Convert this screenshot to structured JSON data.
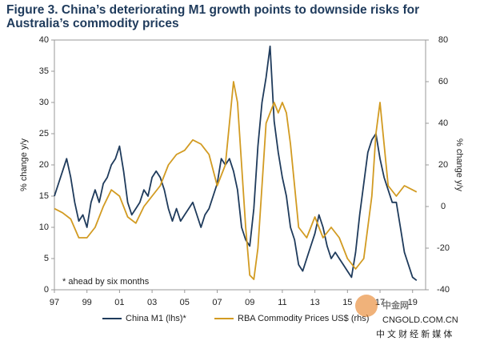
{
  "chart_data": {
    "type": "line",
    "title": "Figure 3. China’s deteriorating M1 growth points to downside risks for Australia’s commodity prices",
    "ylabel": "% change y/y",
    "y2label": "% change y/y",
    "annotation": "* ahead by six months",
    "watermark": "中金网",
    "watermark_url": "CNGOLD.COM.CN",
    "watermark_tagline": "中 文 财 经 新 媒 体",
    "xlim": [
      1997,
      2019.8
    ],
    "xticks": [
      {
        "value": 1997,
        "label": "97"
      },
      {
        "value": 1999,
        "label": "99"
      },
      {
        "value": 2001,
        "label": "01"
      },
      {
        "value": 2003,
        "label": "03"
      },
      {
        "value": 2005,
        "label": "05"
      },
      {
        "value": 2007,
        "label": "07"
      },
      {
        "value": 2009,
        "label": "09"
      },
      {
        "value": 2011,
        "label": "11"
      },
      {
        "value": 2013,
        "label": "13"
      },
      {
        "value": 2015,
        "label": "15"
      },
      {
        "value": 2017,
        "label": "17"
      },
      {
        "value": 2019,
        "label": "19"
      }
    ],
    "ylim": [
      0,
      40
    ],
    "yticks": [
      0,
      5,
      10,
      15,
      20,
      25,
      30,
      35,
      40
    ],
    "y2lim": [
      -40,
      80
    ],
    "y2ticks": [
      -40,
      -20,
      0,
      20,
      40,
      60,
      80
    ],
    "legend": "bottom",
    "series": [
      {
        "name": "China M1 (lhs)*",
        "color": "#1f3b5c",
        "x": [
          1997,
          1997.25,
          1997.5,
          1997.75,
          1998,
          1998.25,
          1998.5,
          1998.75,
          1999,
          1999.25,
          1999.5,
          1999.75,
          2000,
          2000.25,
          2000.5,
          2000.75,
          2001,
          2001.25,
          2001.5,
          2001.75,
          2002,
          2002.25,
          2002.5,
          2002.75,
          2003,
          2003.25,
          2003.5,
          2003.75,
          2004,
          2004.25,
          2004.5,
          2004.75,
          2005,
          2005.25,
          2005.5,
          2005.75,
          2006,
          2006.25,
          2006.5,
          2006.75,
          2007,
          2007.25,
          2007.5,
          2007.75,
          2008,
          2008.25,
          2008.5,
          2008.75,
          2009,
          2009.25,
          2009.5,
          2009.75,
          2010,
          2010.25,
          2010.5,
          2010.75,
          2011,
          2011.25,
          2011.5,
          2011.75,
          2012,
          2012.25,
          2012.5,
          2012.75,
          2013,
          2013.25,
          2013.5,
          2013.75,
          2014,
          2014.25,
          2014.5,
          2014.75,
          2015,
          2015.25,
          2015.5,
          2015.75,
          2016,
          2016.25,
          2016.5,
          2016.75,
          2017,
          2017.25,
          2017.5,
          2017.75,
          2018,
          2018.25,
          2018.5,
          2018.75,
          2019,
          2019.25
        ],
        "values": [
          15,
          17,
          19,
          21,
          18,
          14,
          11,
          12,
          10,
          14,
          16,
          14,
          17,
          18,
          20,
          21,
          23,
          19,
          14,
          12,
          13,
          14,
          16,
          15,
          18,
          19,
          18,
          16,
          13,
          11,
          13,
          11,
          12,
          13,
          14,
          12,
          10,
          12,
          13,
          15,
          17,
          21,
          20,
          21,
          19,
          16,
          10,
          8,
          7,
          13,
          23,
          30,
          34,
          39,
          27,
          22,
          18,
          15,
          10,
          8,
          4,
          3,
          5,
          7,
          9,
          12,
          10,
          7,
          5,
          6,
          5,
          4,
          3,
          2,
          6,
          12,
          17,
          22,
          24,
          25,
          21,
          18,
          16,
          14,
          14,
          10,
          6,
          4,
          2,
          1.5
        ]
      },
      {
        "name": "RBA Commodity Prices US$ (rhs)",
        "color": "#d29b22",
        "axis": "y2",
        "x": [
          1997,
          1997.5,
          1998,
          1998.5,
          1999,
          1999.5,
          2000,
          2000.5,
          2001,
          2001.5,
          2002,
          2002.5,
          2003,
          2003.5,
          2004,
          2004.5,
          2005,
          2005.5,
          2006,
          2006.5,
          2007,
          2007.5,
          2007.75,
          2008,
          2008.25,
          2008.5,
          2008.75,
          2009,
          2009.25,
          2009.5,
          2009.75,
          2010,
          2010.25,
          2010.5,
          2010.75,
          2011,
          2011.25,
          2011.5,
          2011.75,
          2012,
          2012.5,
          2013,
          2013.5,
          2014,
          2014.5,
          2015,
          2015.5,
          2016,
          2016.5,
          2016.75,
          2017,
          2017.25,
          2017.5,
          2018,
          2018.5,
          2019,
          2019.25
        ],
        "values": [
          -1,
          -3,
          -6,
          -15,
          -15,
          -10,
          0,
          8,
          5,
          -5,
          -8,
          0,
          5,
          10,
          20,
          25,
          27,
          32,
          30,
          25,
          10,
          20,
          40,
          60,
          50,
          20,
          -10,
          -33,
          -35,
          -20,
          10,
          40,
          45,
          50,
          45,
          50,
          45,
          30,
          10,
          -10,
          -15,
          -5,
          -15,
          -10,
          -15,
          -25,
          -30,
          -25,
          5,
          35,
          50,
          30,
          10,
          5,
          10,
          8,
          7
        ]
      }
    ]
  }
}
